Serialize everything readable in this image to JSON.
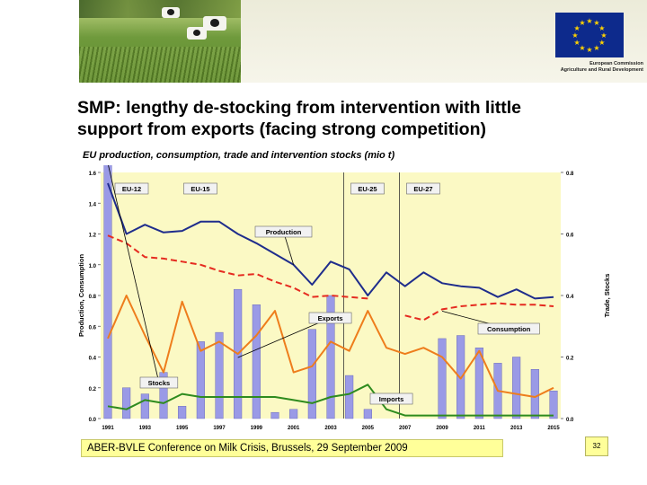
{
  "slide": {
    "title_line1": "SMP: lengthy de-stocking from intervention with little",
    "title_line2": "support from exports (facing strong competition)",
    "subtitle": "EU production, consumption, trade and intervention stocks (mio t)",
    "footer": "ABER-BVLE Conference on Milk Crisis, Brussels, 29 September 2009",
    "page_number": "32",
    "logo_caption_line1": "European Commission",
    "logo_caption_line2": "Agriculture and Rural Development",
    "colors": {
      "header_band": "#ecebd9",
      "eu_blue": "#0d2a8c",
      "eu_star": "#ffd200",
      "chart_bg": "#fbf9c4",
      "footer_bg": "#ffff99"
    }
  },
  "chart_data": {
    "type": "line",
    "x": [
      1991,
      1992,
      1993,
      1994,
      1995,
      1996,
      1997,
      1998,
      1999,
      2000,
      2001,
      2002,
      2003,
      2004,
      2005,
      2006,
      2007,
      2008,
      2009,
      2010,
      2011,
      2012,
      2013,
      2014,
      2015
    ],
    "xticks": [
      "1991",
      "1993",
      "1995",
      "1997",
      "1999",
      "2001",
      "2003",
      "2005",
      "2007",
      "2009",
      "2011",
      "2013",
      "2015"
    ],
    "y_left": {
      "label": "Production, Consumption",
      "ylim": [
        0,
        1.6
      ],
      "ticks": [
        "0.0",
        "0.2",
        "0.4",
        "0.6",
        "0.8",
        "1.0",
        "1.2",
        "1.4",
        "1.6"
      ]
    },
    "y_right": {
      "label": "Trade, Stocks",
      "ylim": [
        0,
        0.8
      ],
      "ticks": [
        "0.0",
        "0.2",
        "0.4",
        "0.6",
        "0.8"
      ]
    },
    "periods": [
      {
        "label": "EU-12",
        "start": 1991,
        "end": 1994.7
      },
      {
        "label": "EU-15",
        "start": 1994.7,
        "end": 2003.7
      },
      {
        "label": "EU-25",
        "start": 2003.7,
        "end": 2006.7
      },
      {
        "label": "EU-27",
        "start": 2006.7,
        "end": 2015
      }
    ],
    "period_boundaries": [
      2003.7,
      2006.7
    ],
    "series": [
      {
        "name": "Production",
        "axis": "left",
        "style": "solid",
        "color": "#1f2d8c",
        "values": [
          1.53,
          1.2,
          1.26,
          1.21,
          1.22,
          1.28,
          1.28,
          1.2,
          1.14,
          1.07,
          1.0,
          0.87,
          1.02,
          0.97,
          0.8,
          0.95,
          0.86,
          0.95,
          0.88,
          0.86,
          0.85,
          0.79,
          0.84,
          0.78,
          0.79
        ]
      },
      {
        "name": "Consumption",
        "axis": "left",
        "style": "dashed",
        "color": "#e52b20",
        "values": [
          1.19,
          1.14,
          1.05,
          1.04,
          1.02,
          1.0,
          0.96,
          0.93,
          0.94,
          0.89,
          0.85,
          0.79,
          0.8,
          0.79,
          0.78,
          null,
          0.67,
          0.64,
          0.71,
          0.73,
          0.74,
          0.75,
          0.74,
          0.74,
          0.73
        ]
      },
      {
        "name": "Exports",
        "axis": "right",
        "style": "solid",
        "color": "#ee7d1c",
        "values": [
          0.26,
          0.4,
          0.27,
          0.15,
          0.38,
          0.22,
          0.25,
          0.21,
          0.27,
          0.35,
          0.15,
          0.17,
          0.25,
          0.22,
          0.35,
          0.23,
          0.21,
          0.23,
          0.2,
          0.13,
          0.22,
          0.09,
          0.08,
          0.07,
          0.1
        ]
      },
      {
        "name": "Imports",
        "axis": "right",
        "style": "solid",
        "color": "#2e8b1e",
        "values": [
          0.04,
          0.03,
          0.06,
          0.05,
          0.08,
          0.07,
          0.07,
          0.07,
          0.07,
          0.07,
          0.06,
          0.05,
          0.07,
          0.08,
          0.11,
          0.03,
          0.01,
          0.01,
          0.01,
          0.01,
          0.01,
          0.01,
          0.01,
          0.01,
          0.01
        ]
      },
      {
        "name": "Stocks",
        "axis": "right",
        "type": "bar",
        "color": "#9a9ae6",
        "values": [
          0.83,
          0.1,
          0.08,
          0.15,
          0.04,
          0.25,
          0.28,
          0.42,
          0.37,
          0.02,
          0.03,
          0.29,
          0.4,
          0.14,
          0.03,
          0.0,
          0.0,
          0.0,
          0.26,
          0.27,
          0.23,
          0.18,
          0.2,
          0.16,
          0.09
        ]
      }
    ],
    "callouts": [
      "Production",
      "Exports",
      "Consumption",
      "Stocks",
      "Imports"
    ]
  }
}
